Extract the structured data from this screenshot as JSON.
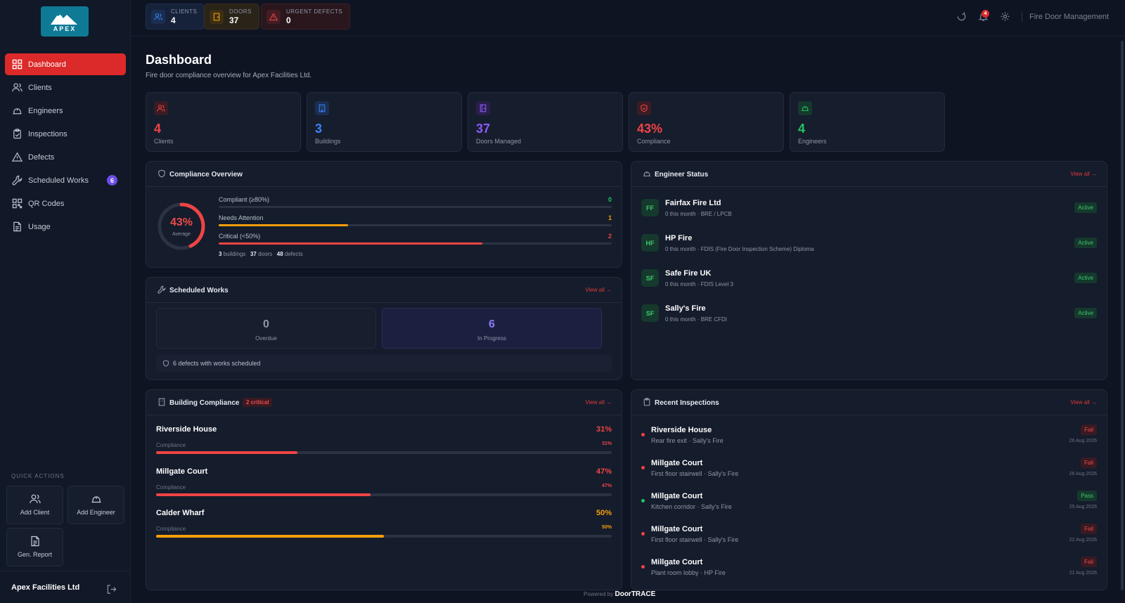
{
  "brand": {
    "name": "APEX",
    "accent": "#dc2a2a"
  },
  "sidebar": {
    "items": [
      {
        "label": "Dashboard",
        "icon": "grid-icon",
        "active": true
      },
      {
        "label": "Clients",
        "icon": "users-icon"
      },
      {
        "label": "Engineers",
        "icon": "hardhat-icon"
      },
      {
        "label": "Inspections",
        "icon": "clipboard-icon"
      },
      {
        "label": "Defects",
        "icon": "warning-icon"
      },
      {
        "label": "Scheduled Works",
        "icon": "wrench-icon",
        "badge": "6"
      },
      {
        "label": "QR Codes",
        "icon": "qr-icon"
      },
      {
        "label": "Usage",
        "icon": "document-icon"
      }
    ],
    "quick_actions_title": "QUICK ACTIONS",
    "quick_actions": [
      {
        "label": "Add Client",
        "icon": "users-icon"
      },
      {
        "label": "Add Engineer",
        "icon": "hardhat-icon"
      },
      {
        "label": "Gen. Report",
        "icon": "document-icon"
      }
    ],
    "org_name": "Apex Facilities Ltd"
  },
  "topbar": {
    "stats": [
      {
        "label": "CLIENTS",
        "value": "4",
        "color": "#3b82f6"
      },
      {
        "label": "DOORS",
        "value": "37",
        "color": "#f59e0b"
      },
      {
        "label": "URGENT DEFECTS",
        "value": "0",
        "color": "#ef4444"
      }
    ],
    "notification_count": "4",
    "app_title": "Fire Door Management"
  },
  "page": {
    "title": "Dashboard",
    "subtitle": "Fire door compliance overview for Apex Facilities Ltd."
  },
  "kpis": [
    {
      "value": "4",
      "label": "Clients",
      "color": "#ef4444",
      "icon": "users-icon"
    },
    {
      "value": "3",
      "label": "Buildings",
      "color": "#3b82f6",
      "icon": "building-icon"
    },
    {
      "value": "37",
      "label": "Doors Managed",
      "color": "#8b5cf6",
      "icon": "door-icon"
    },
    {
      "value": "43%",
      "label": "Compliance",
      "color": "#ef4444",
      "icon": "shield-icon"
    },
    {
      "value": "4",
      "label": "Engineers",
      "color": "#22c55e",
      "icon": "hardhat-icon"
    }
  ],
  "compliance": {
    "title": "Compliance Overview",
    "average_value": "43%",
    "average_fraction": 0.43,
    "average_label": "Average",
    "rows": [
      {
        "label": "Compliant (≥80%)",
        "count": "0",
        "fraction": 0.0,
        "color": "#22c55e"
      },
      {
        "label": "Needs Attention",
        "count": "1",
        "fraction": 0.33,
        "color": "#f59e0b"
      },
      {
        "label": "Critical (<50%)",
        "count": "2",
        "fraction": 0.67,
        "color": "#ef4444"
      }
    ],
    "foot": {
      "buildings": "3",
      "buildings_lbl": "buildings",
      "doors": "37",
      "doors_lbl": "doors",
      "defects": "48",
      "defects_lbl": "defects"
    }
  },
  "scheduled": {
    "title": "Scheduled Works",
    "view_all": "View all →",
    "overdue_value": "0",
    "overdue_label": "Overdue",
    "progress_value": "6",
    "progress_label": "In Progress",
    "note": "6 defects with works scheduled"
  },
  "buildings": {
    "title": "Building Compliance",
    "badge": "2 critical",
    "view_all": "View all →",
    "sub_label": "Compliance",
    "items": [
      {
        "name": "Riverside House",
        "pct": "31%",
        "fraction": 0.31,
        "color": "#ef4444"
      },
      {
        "name": "Millgate Court",
        "pct": "47%",
        "fraction": 0.47,
        "color": "#ef4444"
      },
      {
        "name": "Calder Wharf",
        "pct": "50%",
        "fraction": 0.5,
        "color": "#f59e0b"
      }
    ]
  },
  "engineers": {
    "title": "Engineer Status",
    "view_all": "View all →",
    "items": [
      {
        "initials": "FF",
        "name": "Fairfax Fire Ltd",
        "sub": "0 this month · BRE / LPCB",
        "status": "Active"
      },
      {
        "initials": "HF",
        "name": "HP Fire",
        "sub": "0 this month · FDIS (Fire Door Inspection Scheme) Diploma",
        "status": "Active"
      },
      {
        "initials": "SF",
        "name": "Safe Fire UK",
        "sub": "0 this month · FDIS Level 3",
        "status": "Active"
      },
      {
        "initials": "SF",
        "name": "Sally's Fire",
        "sub": "0 this month · BRE CFDI",
        "status": "Active"
      }
    ]
  },
  "inspections": {
    "title": "Recent Inspections",
    "view_all": "View all →",
    "items": [
      {
        "name": "Riverside House",
        "sub": "Rear fire exit · Sally's Fire",
        "result": "Fail",
        "date": "26 Aug 2026"
      },
      {
        "name": "Millgate Court",
        "sub": "First floor stairwell · Sally's Fire",
        "result": "Fail",
        "date": "26 Aug 2026"
      },
      {
        "name": "Millgate Court",
        "sub": "Kitchen corridor · Sally's Fire",
        "result": "Pass",
        "date": "25 Aug 2026"
      },
      {
        "name": "Millgate Court",
        "sub": "First floor stairwell · Sally's Fire",
        "result": "Fail",
        "date": "22 Aug 2026"
      },
      {
        "name": "Millgate Court",
        "sub": "Plant room lobby · HP Fire",
        "result": "Fail",
        "date": "21 Aug 2026"
      }
    ]
  },
  "footer": {
    "powered": "Powered by",
    "brand": "DoorTRACE"
  }
}
